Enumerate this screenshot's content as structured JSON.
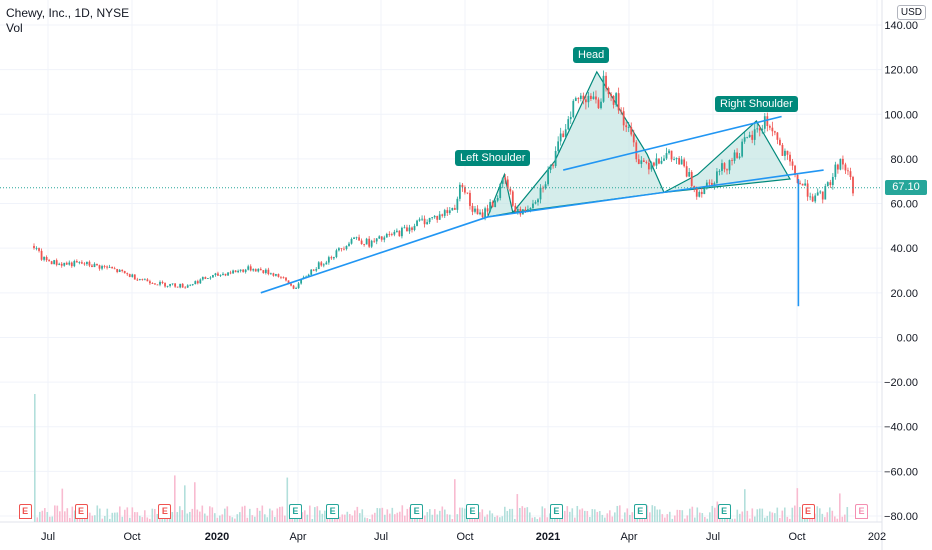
{
  "legend": {
    "title": "Chewy, Inc., 1D, NYSE",
    "subtitle": "Vol"
  },
  "currency_badge": "USD",
  "last_price_label": "67.10",
  "colors": {
    "up": "#26a69a",
    "down": "#ef5350",
    "trend": "#2196f3",
    "pattern_fill": "#b2dfdb",
    "pattern_line": "#00897b",
    "vol_up": "#b2dfdb",
    "vol_down": "#f8bbd0"
  },
  "annotations": {
    "left_shoulder": "Left Shoulder",
    "head": "Head",
    "right_shoulder": "Right Shoulder"
  },
  "earnings_marker": "E",
  "chart_data": {
    "type": "candlestick",
    "y_axis": {
      "min": -80,
      "max": 140,
      "ticks": [
        "140.00",
        "120.00",
        "100.00",
        "80.00",
        "60.00",
        "40.00",
        "20.00",
        "0.00",
        "−20.00",
        "−40.00",
        "−60.00",
        "−80.00"
      ]
    },
    "x_axis": {
      "ticks": [
        "Jul",
        "Oct",
        "2020",
        "Apr",
        "Jul",
        "Oct",
        "2021",
        "Apr",
        "Jul",
        "Oct",
        "202"
      ]
    },
    "last_price": 67.1,
    "price_path": [
      [
        0,
        41
      ],
      [
        1,
        35
      ],
      [
        3,
        33
      ],
      [
        6,
        33
      ],
      [
        9,
        31
      ],
      [
        12,
        27
      ],
      [
        15,
        24
      ],
      [
        18,
        23
      ],
      [
        20,
        26
      ],
      [
        23,
        29
      ],
      [
        26,
        31
      ],
      [
        29,
        28
      ],
      [
        31,
        22
      ],
      [
        33,
        30
      ],
      [
        36,
        38
      ],
      [
        38,
        45
      ],
      [
        40,
        42
      ],
      [
        42,
        45
      ],
      [
        44,
        48
      ],
      [
        46,
        52
      ],
      [
        48,
        54
      ],
      [
        50,
        58
      ],
      [
        51,
        70
      ],
      [
        52,
        58
      ],
      [
        53,
        54
      ],
      [
        55,
        62
      ],
      [
        56,
        71
      ],
      [
        57,
        60
      ],
      [
        58,
        55
      ],
      [
        60,
        64
      ],
      [
        62,
        80
      ],
      [
        64,
        104
      ],
      [
        66,
        110
      ],
      [
        67,
        102
      ],
      [
        68,
        117
      ],
      [
        69,
        108
      ],
      [
        70,
        100
      ],
      [
        71,
        90
      ],
      [
        72,
        80
      ],
      [
        73,
        78
      ],
      [
        75,
        82
      ],
      [
        77,
        78
      ],
      [
        79,
        65
      ],
      [
        81,
        72
      ],
      [
        83,
        80
      ],
      [
        85,
        88
      ],
      [
        86,
        92
      ],
      [
        87,
        97
      ],
      [
        88,
        93
      ],
      [
        89,
        83
      ],
      [
        90,
        77
      ],
      [
        91,
        70
      ],
      [
        92,
        66
      ],
      [
        93,
        62
      ],
      [
        94,
        64
      ],
      [
        95,
        72
      ],
      [
        96,
        80
      ],
      [
        97,
        73
      ],
      [
        97.5,
        67
      ]
    ],
    "pattern": {
      "left_shoulder": [
        [
          54,
          54
        ],
        [
          56,
          73
        ],
        [
          57,
          56
        ]
      ],
      "head": [
        [
          57,
          56
        ],
        [
          62,
          79
        ],
        [
          67,
          119
        ],
        [
          73,
          82
        ],
        [
          75,
          65
        ]
      ],
      "right_shoulder": [
        [
          75,
          65
        ],
        [
          79,
          73
        ],
        [
          86,
          97
        ],
        [
          90,
          71
        ]
      ]
    },
    "trendlines": [
      {
        "from": [
          27,
          20
        ],
        "to": [
          54,
          54
        ]
      },
      {
        "from": [
          54,
          54
        ],
        "to": [
          94,
          75
        ]
      },
      {
        "from": [
          63,
          75
        ],
        "to": [
          89,
          99
        ]
      },
      {
        "from": [
          91,
          71
        ],
        "to": [
          91,
          14
        ]
      }
    ],
    "volume_spike_index": 0,
    "earnings_up_positions": [
      0.31,
      0.35,
      0.44,
      0.5,
      0.59,
      0.68,
      0.77
    ],
    "earnings_down_positions": [
      0.02,
      0.08,
      0.17,
      0.86
    ]
  }
}
